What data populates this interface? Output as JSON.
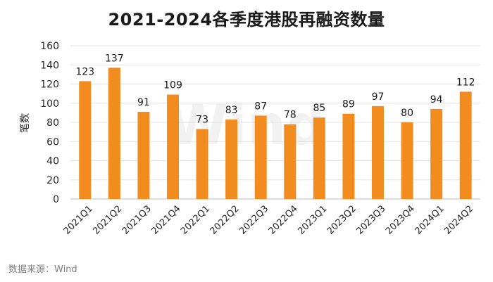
{
  "chart_data": {
    "type": "bar",
    "title": "2021-2024各季度港股再融资数量",
    "ylabel": "笔数",
    "xlabel": "",
    "ylim": [
      0,
      160
    ],
    "yticks": [
      0,
      20,
      40,
      60,
      80,
      100,
      120,
      140,
      160
    ],
    "grid": true,
    "bar_color": "#F28C1E",
    "categories": [
      "2021Q1",
      "2021Q2",
      "2021Q3",
      "2021Q4",
      "2022Q1",
      "2022Q2",
      "2022Q3",
      "2022Q4",
      "2023Q1",
      "2023Q2",
      "2023Q3",
      "2023Q4",
      "2024Q1",
      "2024Q2"
    ],
    "values": [
      123,
      137,
      91,
      109,
      73,
      83,
      87,
      78,
      85,
      89,
      97,
      80,
      94,
      112
    ]
  },
  "watermark": "Wind",
  "source": "数据来源：Wind"
}
